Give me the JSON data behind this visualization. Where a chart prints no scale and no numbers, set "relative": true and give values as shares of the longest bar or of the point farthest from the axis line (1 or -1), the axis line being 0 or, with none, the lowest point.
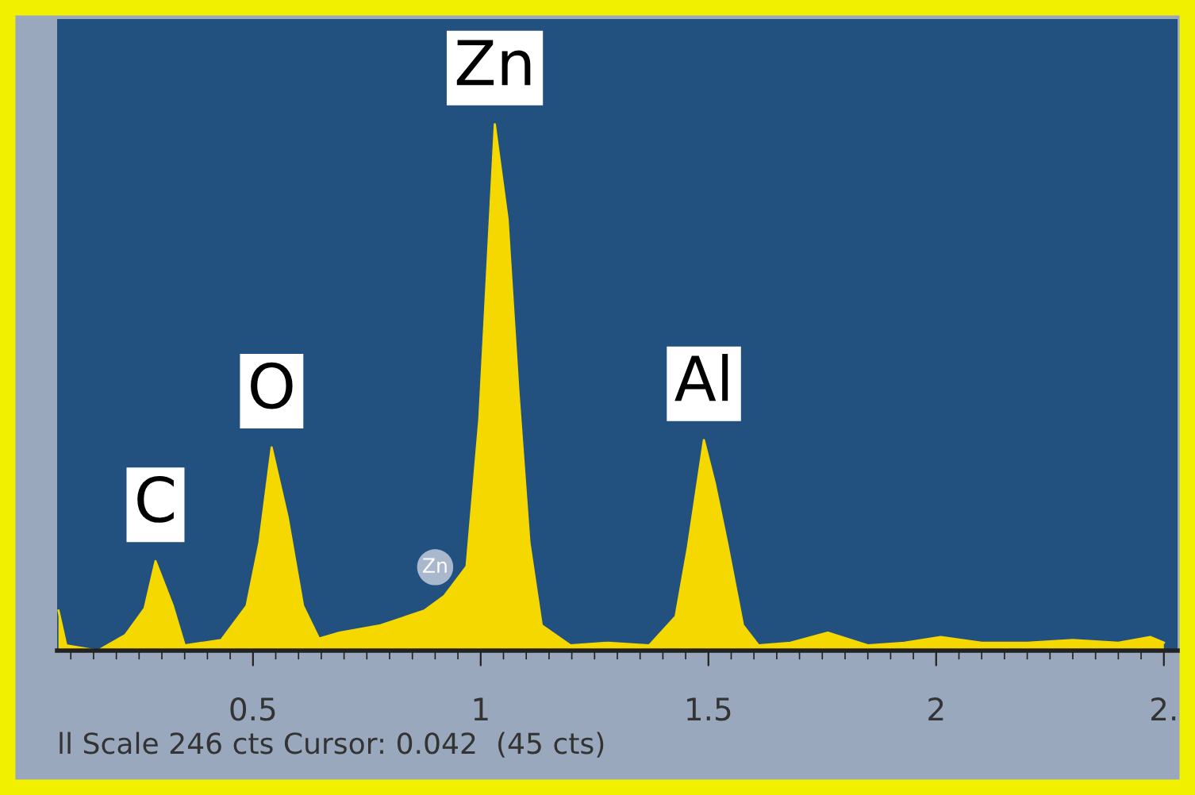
{
  "chart_data": {
    "type": "area",
    "relative": true,
    "color": "#f5d800",
    "x": [
      0.073,
      0.09,
      0.16,
      0.22,
      0.262,
      0.286,
      0.324,
      0.35,
      0.43,
      0.486,
      0.514,
      0.541,
      0.576,
      0.61,
      0.645,
      0.69,
      0.78,
      0.876,
      0.92,
      0.969,
      0.997,
      1.014,
      1.031,
      1.059,
      1.083,
      1.107,
      1.134,
      1.197,
      1.28,
      1.37,
      1.428,
      1.455,
      1.49,
      1.514,
      1.541,
      1.576,
      1.61,
      1.68,
      1.762,
      1.85,
      1.93,
      2.01,
      2.1,
      2.2,
      2.3,
      2.4,
      2.47,
      2.5
    ],
    "values": [
      0.076,
      0.01,
      0.0,
      0.03,
      0.08,
      0.17,
      0.085,
      0.01,
      0.02,
      0.085,
      0.205,
      0.386,
      0.254,
      0.085,
      0.023,
      0.034,
      0.048,
      0.076,
      0.104,
      0.16,
      0.44,
      0.72,
      1.0,
      0.82,
      0.49,
      0.205,
      0.048,
      0.01,
      0.015,
      0.01,
      0.065,
      0.197,
      0.4,
      0.318,
      0.205,
      0.048,
      0.01,
      0.015,
      0.034,
      0.01,
      0.015,
      0.026,
      0.015,
      0.015,
      0.02,
      0.015,
      0.026,
      0.015
    ],
    "xlim": [
      0.07,
      2.53
    ],
    "xticks": [
      0.5,
      1,
      1.5,
      2,
      {
        "value": 2.5,
        "label": "2."
      }
    ],
    "annotations": [
      {
        "text": "C",
        "x": 0.286,
        "y": 0.17
      },
      {
        "text": "O",
        "x": 0.541,
        "y": 0.386
      },
      {
        "text": "Zn",
        "x": 1.031,
        "y": 1.0
      },
      {
        "text": "Al",
        "x": 1.49,
        "y": 0.4
      },
      {
        "text": "Zn",
        "x": 0.9,
        "y": 0.09
      },
      "ll Scale 246 cts Cursor: 0.042  (45 cts)"
    ]
  }
}
